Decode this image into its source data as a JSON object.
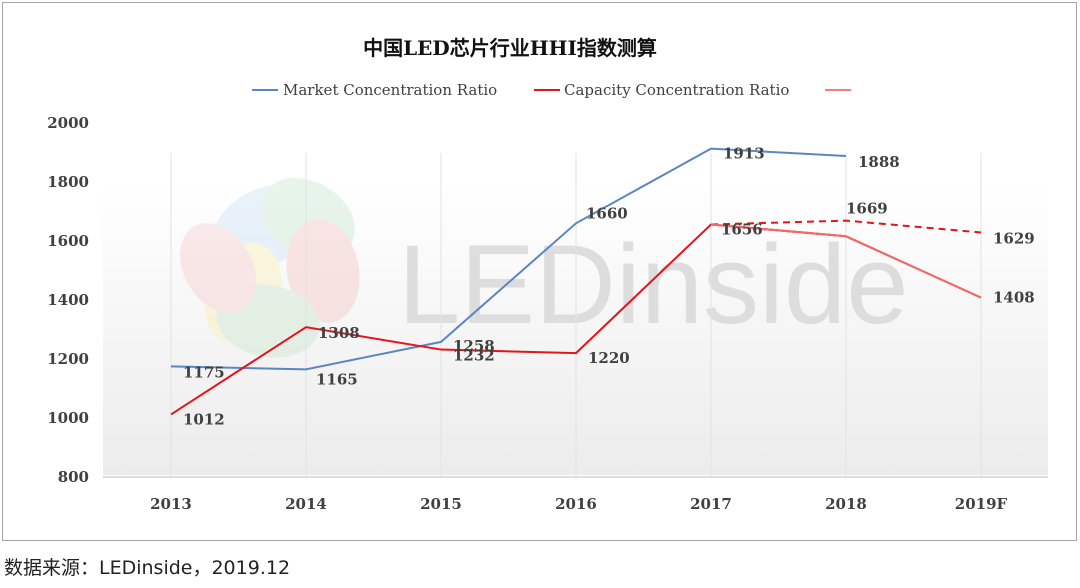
{
  "chart_data": {
    "type": "line",
    "title": "中国LED芯片行业HHI指数测算",
    "categories": [
      "2013",
      "2014",
      "2015",
      "2016",
      "2017",
      "2018",
      "2019F"
    ],
    "ylim": [
      800,
      2000
    ],
    "yticks": [
      "800",
      "1000",
      "1200",
      "1400",
      "1600",
      "1800",
      "2000"
    ],
    "xlabel": "",
    "ylabel": "",
    "legend": {
      "placement": "top-center",
      "entries": [
        "Market Concentration Ratio",
        "Capacity Concentration Ratio",
        ""
      ]
    },
    "series": [
      {
        "name": "Market Concentration Ratio",
        "color": "#5b86c0",
        "values": [
          1175,
          1165,
          1258,
          1660,
          1913,
          1888,
          null
        ],
        "labels": [
          "1175",
          "1165",
          "1258",
          "1660",
          "1913",
          "1888",
          ""
        ]
      },
      {
        "name": "Capacity Concentration Ratio",
        "color": "#e4141b",
        "values": [
          1012,
          1308,
          1232,
          1220,
          1656,
          1616,
          1408
        ],
        "labels": [
          "1012",
          "1308",
          "1232",
          "1220",
          "1656",
          "",
          "1408"
        ]
      },
      {
        "name": "",
        "color": "#e4141b",
        "dashed": true,
        "values": [
          null,
          null,
          null,
          null,
          1656,
          1669,
          1629
        ],
        "labels": [
          "",
          "",
          "",
          "",
          "",
          "1669",
          "1629"
        ]
      }
    ],
    "watermark": "LEDinside"
  },
  "source_note": "数据来源：LEDinside，2019.12"
}
